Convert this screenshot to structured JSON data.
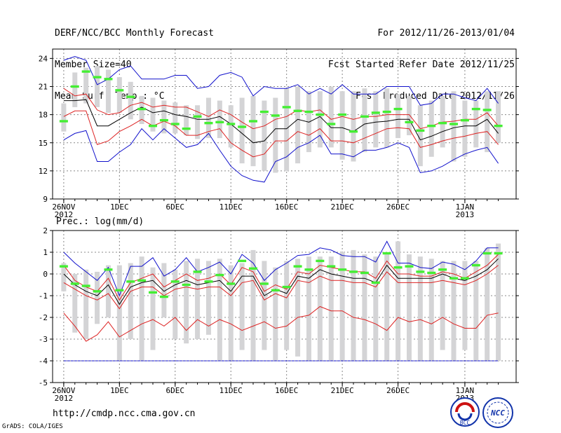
{
  "header": {
    "left": [
      "DERF/NCC/BCC Monthly Forecast",
      "Member Size=40",
      "Mean Surf. Temp.: °C"
    ],
    "right": [
      "For 2012/11/26-2013/01/04",
      "Fcst Started Refer Date 2012/11/25",
      "Fcst Produced Date 2012/11/26"
    ]
  },
  "footer": {
    "url": "http://cmdp.ncc.cma.gov.cn",
    "grads": "GrADS: COLA/IGES",
    "logo_bcc": "BCC",
    "logo_ncc": "NCC"
  },
  "colors": {
    "bar": "#d4d4d6",
    "green": "#44ee33",
    "red": "#dd2222",
    "blue": "#1111cc",
    "black": "#000000",
    "grid": "#888888"
  },
  "chart_data": [
    {
      "type": "line",
      "title": "Mean Surf. Temp.: °C",
      "ylim": [
        9,
        25
      ],
      "yticks": [
        9,
        12,
        15,
        18,
        21,
        24
      ],
      "x_ticks": [
        {
          "day": 0,
          "label": "26NOV",
          "sub": "2012"
        },
        {
          "day": 5,
          "label": "1DEC"
        },
        {
          "day": 10,
          "label": "6DEC"
        },
        {
          "day": 15,
          "label": "11DEC"
        },
        {
          "day": 20,
          "label": "16DEC"
        },
        {
          "day": 25,
          "label": "21DEC"
        },
        {
          "day": 30,
          "label": "26DEC"
        },
        {
          "day": 36,
          "label": "1JAN",
          "sub": "2013"
        }
      ],
      "days": 40,
      "bar_low": [
        16.2,
        18.8,
        19.2,
        18.8,
        18.2,
        18.2,
        17.5,
        17.0,
        16.2,
        16.0,
        16.0,
        15.8,
        15.4,
        15.5,
        15.5,
        14.5,
        12.8,
        12.5,
        12.0,
        11.8,
        12.0,
        12.8,
        14.0,
        14.5,
        14.5,
        13.2,
        13.0,
        14.0,
        14.5,
        14.5,
        15.5,
        15.8,
        12.5,
        13.5,
        14.5,
        13.0,
        13.5,
        14.5,
        14.0,
        15.0
      ],
      "bar_high": [
        19.2,
        22.5,
        23.0,
        23.2,
        22.8,
        22.0,
        21.5,
        20.0,
        19.8,
        19.5,
        19.3,
        19.0,
        19.0,
        19.8,
        19.5,
        19.0,
        19.8,
        20.0,
        19.5,
        19.8,
        20.8,
        21.0,
        20.5,
        20.5,
        21.0,
        20.5,
        20.5,
        20.8,
        20.5,
        20.8,
        20.2,
        20.0,
        19.0,
        19.5,
        20.0,
        20.5,
        19.5,
        19.5,
        20.5,
        20.5
      ],
      "green": [
        17.3,
        21.0,
        22.6,
        22.0,
        21.8,
        20.6,
        19.9,
        18.6,
        16.8,
        17.4,
        17.0,
        16.5,
        17.8,
        17.1,
        17.2,
        17.0,
        16.7,
        17.3,
        18.3,
        17.9,
        18.8,
        18.4,
        18.3,
        18.0,
        17.0,
        18.0,
        16.2,
        17.8,
        18.2,
        18.3,
        18.6,
        17.2,
        16.3,
        16.8,
        17.1,
        17.0,
        17.4,
        18.6,
        18.5,
        16.8
      ],
      "series": [
        {
          "name": "upper",
          "color": "blue",
          "values": [
            23.8,
            24.2,
            23.8,
            21.2,
            21.8,
            22.8,
            23.2,
            21.8,
            21.8,
            21.8,
            22.2,
            22.2,
            20.8,
            21.0,
            22.2,
            22.5,
            22.0,
            20.0,
            21.0,
            20.8,
            20.8,
            21.2,
            20.2,
            20.8,
            20.2,
            21.2,
            20.2,
            20.2,
            20.2,
            21.0,
            21.0,
            21.0,
            19.0,
            19.2,
            20.2,
            20.2,
            19.8,
            19.5,
            20.8,
            19.2
          ]
        },
        {
          "name": "mean+sd",
          "color": "red",
          "values": [
            20.8,
            20.0,
            20.2,
            18.5,
            18.0,
            18.2,
            19.0,
            19.3,
            18.8,
            19.0,
            18.8,
            18.8,
            18.3,
            17.8,
            18.5,
            18.0,
            17.2,
            16.5,
            16.8,
            17.5,
            17.8,
            18.5,
            18.3,
            18.5,
            17.5,
            17.8,
            17.5,
            17.8,
            17.8,
            18.0,
            18.0,
            18.0,
            16.5,
            16.8,
            17.2,
            17.3,
            17.5,
            17.5,
            18.2,
            16.8
          ]
        },
        {
          "name": "mean",
          "color": "black",
          "values": [
            19.5,
            19.5,
            19.6,
            16.8,
            16.8,
            17.5,
            18.2,
            18.8,
            18.2,
            18.4,
            18.0,
            17.8,
            17.5,
            17.5,
            17.8,
            17.0,
            16.0,
            15.0,
            15.2,
            16.5,
            16.5,
            17.5,
            17.2,
            17.8,
            16.6,
            16.6,
            16.2,
            17.0,
            17.2,
            17.3,
            17.5,
            17.5,
            15.3,
            15.7,
            16.2,
            16.6,
            16.8,
            16.8,
            17.5,
            16.0
          ]
        },
        {
          "name": "mean-sd",
          "color": "red",
          "values": [
            17.8,
            18.4,
            18.4,
            14.8,
            15.2,
            16.2,
            16.8,
            17.5,
            16.8,
            17.3,
            16.8,
            15.8,
            15.8,
            16.2,
            16.5,
            15.0,
            14.2,
            13.5,
            13.8,
            15.2,
            15.2,
            16.2,
            15.8,
            16.5,
            15.2,
            15.2,
            15.0,
            15.5,
            16.0,
            16.5,
            16.6,
            16.5,
            14.5,
            14.8,
            15.2,
            15.5,
            15.7,
            16.0,
            16.2,
            14.8
          ]
        },
        {
          "name": "lower",
          "color": "blue",
          "values": [
            15.3,
            16.0,
            16.3,
            13.0,
            13.0,
            14.0,
            14.8,
            16.5,
            15.3,
            16.5,
            15.5,
            14.5,
            14.8,
            16.0,
            14.2,
            12.5,
            11.5,
            11.0,
            10.8,
            13.0,
            13.5,
            14.5,
            15.0,
            15.8,
            13.8,
            13.8,
            13.5,
            14.2,
            14.2,
            14.5,
            15.0,
            14.5,
            11.8,
            12.0,
            12.5,
            13.2,
            13.8,
            14.2,
            14.5,
            12.8
          ]
        }
      ]
    },
    {
      "type": "line",
      "title": "Prec.: log(mm/d)",
      "ylim": [
        -5,
        2
      ],
      "yticks": [
        -5,
        -4,
        -3,
        -2,
        -1,
        0,
        1,
        2
      ],
      "x_ticks": [
        {
          "day": 0,
          "label": "26NOV",
          "sub": "2012"
        },
        {
          "day": 5,
          "label": "1DEC"
        },
        {
          "day": 10,
          "label": "6DEC"
        },
        {
          "day": 15,
          "label": "11DEC"
        },
        {
          "day": 20,
          "label": "16DEC"
        },
        {
          "day": 25,
          "label": "21DEC"
        },
        {
          "day": 30,
          "label": "26DEC"
        },
        {
          "day": 36,
          "label": "1JAN",
          "sub": "2013"
        }
      ],
      "days": 40,
      "baseline": -4,
      "bar_low": [
        -0.8,
        -2.7,
        -3.0,
        -2.3,
        -2.0,
        -4.0,
        -3.0,
        -4.0,
        -3.5,
        -2.0,
        -3.0,
        -3.2,
        -3.0,
        -2.8,
        -4.0,
        -4.0,
        -3.5,
        -4.0,
        -3.5,
        -4.0,
        -3.5,
        -3.8,
        -4.0,
        -4.0,
        -4.0,
        -4.0,
        -4.0,
        -4.0,
        -4.0,
        -4.0,
        -4.0,
        -4.0,
        -4.0,
        -4.0,
        -3.5,
        -4.0,
        -3.5,
        -4.0,
        -4.0,
        -4.0
      ],
      "bar_high": [
        0.5,
        0.0,
        0.2,
        0.1,
        0.4,
        0.4,
        0.5,
        0.8,
        0.3,
        0.5,
        0.2,
        0.6,
        0.7,
        0.6,
        0.7,
        0.4,
        0.5,
        1.1,
        0.6,
        0.3,
        0.6,
        0.7,
        0.8,
        0.8,
        0.8,
        1.0,
        1.1,
        0.9,
        0.8,
        0.9,
        1.5,
        0.9,
        0.8,
        0.7,
        0.6,
        0.6,
        0.6,
        0.6,
        1.2,
        1.4
      ],
      "green": [
        0.35,
        -0.45,
        -0.55,
        -0.8,
        0.2,
        -0.75,
        -0.35,
        -0.3,
        -0.85,
        -1.05,
        -0.35,
        -0.5,
        0.1,
        -0.35,
        -0.05,
        -0.45,
        0.6,
        0.25,
        -0.45,
        -0.75,
        -0.6,
        0.35,
        0.2,
        0.6,
        0.35,
        0.2,
        0.1,
        0.05,
        -0.4,
        0.95,
        0.3,
        0.35,
        0.1,
        0.05,
        0.2,
        -0.2,
        -0.2,
        0.4,
        0.95,
        0.95
      ],
      "series": [
        {
          "name": "upper",
          "color": "blue",
          "values": [
            1.0,
            0.5,
            0.1,
            -0.3,
            0.3,
            -1.0,
            0.35,
            0.35,
            0.75,
            -0.1,
            0.2,
            0.75,
            0.1,
            0.3,
            0.55,
            0.0,
            0.9,
            0.5,
            -0.3,
            0.2,
            0.5,
            0.85,
            0.9,
            1.2,
            1.1,
            0.85,
            0.8,
            0.8,
            0.55,
            1.5,
            0.5,
            0.5,
            0.3,
            0.25,
            0.55,
            0.45,
            0.2,
            0.6,
            1.2,
            1.2
          ]
        },
        {
          "name": "mean+sd",
          "color": "red",
          "values": [
            0.4,
            -0.3,
            -0.6,
            -0.8,
            -0.2,
            -1.2,
            -0.4,
            -0.2,
            0.0,
            -0.6,
            -0.3,
            0.0,
            -0.3,
            -0.2,
            0.0,
            -0.5,
            0.3,
            0.1,
            -0.8,
            -0.5,
            -0.7,
            0.1,
            0.0,
            0.4,
            0.3,
            0.2,
            0.1,
            0.1,
            -0.2,
            0.6,
            0.0,
            0.0,
            -0.1,
            -0.1,
            0.1,
            0.0,
            -0.2,
            0.1,
            0.4,
            0.9
          ]
        },
        {
          "name": "mean",
          "color": "black",
          "values": [
            0.0,
            -0.5,
            -0.8,
            -1.0,
            -0.5,
            -1.4,
            -0.6,
            -0.4,
            -0.3,
            -0.8,
            -0.5,
            -0.3,
            -0.5,
            -0.4,
            -0.3,
            -0.8,
            -0.1,
            -0.1,
            -1.0,
            -0.7,
            -0.9,
            -0.1,
            -0.2,
            0.2,
            0.0,
            -0.1,
            -0.2,
            -0.2,
            -0.4,
            0.4,
            -0.2,
            -0.2,
            -0.2,
            -0.2,
            0.0,
            -0.2,
            -0.3,
            -0.1,
            0.2,
            0.7
          ]
        },
        {
          "name": "mean-sd",
          "color": "red",
          "values": [
            -0.4,
            -0.7,
            -1.0,
            -1.2,
            -0.9,
            -1.6,
            -0.8,
            -0.6,
            -0.6,
            -1.0,
            -0.7,
            -0.6,
            -0.7,
            -0.6,
            -0.6,
            -1.0,
            -0.4,
            -0.3,
            -1.2,
            -0.9,
            -1.1,
            -0.3,
            -0.4,
            -0.1,
            -0.3,
            -0.3,
            -0.4,
            -0.4,
            -0.6,
            0.1,
            -0.4,
            -0.4,
            -0.4,
            -0.4,
            -0.3,
            -0.4,
            -0.5,
            -0.3,
            0.0,
            0.4
          ]
        },
        {
          "name": "lower",
          "color": "red",
          "values": [
            -1.8,
            -2.4,
            -3.1,
            -2.8,
            -2.2,
            -2.9,
            -2.6,
            -2.3,
            -2.1,
            -2.4,
            -2.0,
            -2.6,
            -2.1,
            -2.4,
            -2.1,
            -2.3,
            -2.6,
            -2.4,
            -2.2,
            -2.5,
            -2.4,
            -2.0,
            -1.9,
            -1.5,
            -1.7,
            -1.7,
            -2.0,
            -2.1,
            -2.3,
            -2.6,
            -2.0,
            -2.2,
            -2.1,
            -2.3,
            -2.0,
            -2.3,
            -2.5,
            -2.5,
            -1.9,
            -1.8
          ]
        }
      ]
    }
  ]
}
